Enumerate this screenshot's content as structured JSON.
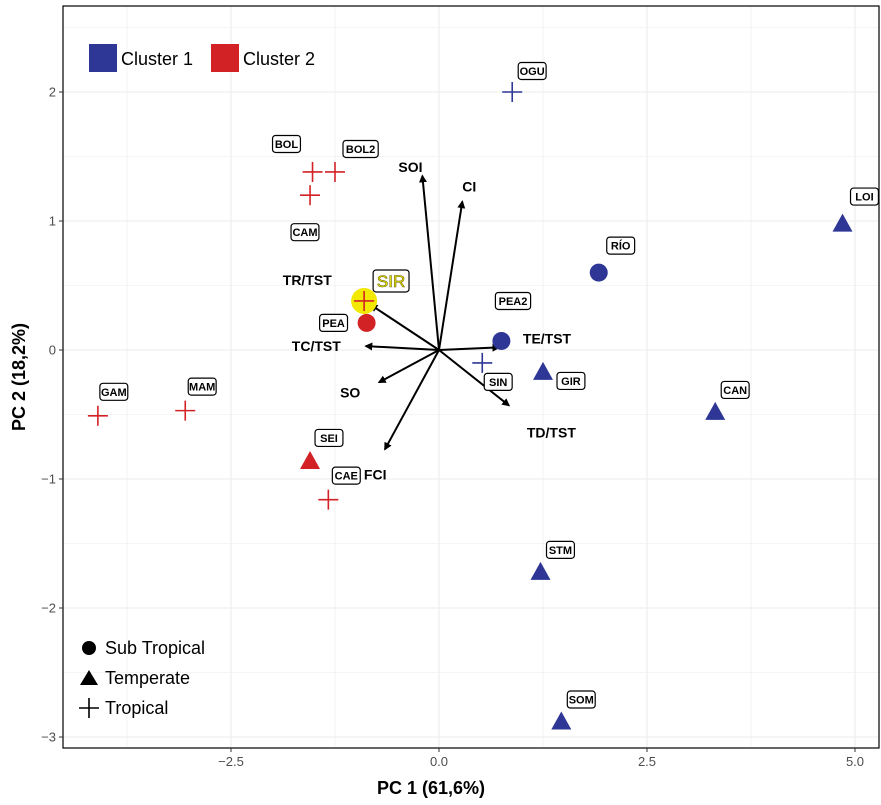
{
  "chart_data": {
    "type": "scatter",
    "xlabel": "PC 1 (61,6%)",
    "ylabel": "PC 2 (18,2%)",
    "xlim": [
      -5.3,
      5.3
    ],
    "ylim": [
      -3.15,
      2.55
    ],
    "x_ticks": [
      -2.5,
      0.0,
      2.5,
      5.0
    ],
    "x_tick_labels": [
      "−2.5",
      "0.0",
      "2.5",
      "5.0"
    ],
    "y_ticks": [
      -3,
      -2,
      -1,
      0,
      1,
      2
    ],
    "y_tick_labels": [
      "−3",
      "−2",
      "−1",
      "0",
      "1",
      "2"
    ],
    "grid": true,
    "colors": {
      "cluster1": "#2e3795",
      "cluster2": "#d32226",
      "highlight": "#f2e800"
    },
    "cluster_legend": [
      {
        "key": "cluster1",
        "label": "Cluster 1"
      },
      {
        "key": "cluster2",
        "label": "Cluster 2"
      }
    ],
    "shape_legend": [
      {
        "shape": "circle",
        "label": "Sub Tropical"
      },
      {
        "shape": "triangle",
        "label": "Temperate"
      },
      {
        "shape": "cross",
        "label": "Tropical"
      }
    ],
    "points": [
      {
        "label": "OGU",
        "x": 0.88,
        "y": 2.0,
        "cluster": "cluster1",
        "shape": "cross"
      },
      {
        "label": "LOI",
        "x": 4.85,
        "y": 0.98,
        "cluster": "cluster1",
        "shape": "triangle"
      },
      {
        "label": "RÍO",
        "x": 1.92,
        "y": 0.6,
        "cluster": "cluster1",
        "shape": "circle"
      },
      {
        "label": "PEA2",
        "x": 0.75,
        "y": 0.07,
        "cluster": "cluster1",
        "shape": "circle"
      },
      {
        "label": "SIN",
        "x": 0.52,
        "y": -0.1,
        "cluster": "cluster1",
        "shape": "cross"
      },
      {
        "label": "GIR",
        "x": 1.25,
        "y": -0.17,
        "cluster": "cluster1",
        "shape": "triangle"
      },
      {
        "label": "CAN",
        "x": 3.32,
        "y": -0.48,
        "cluster": "cluster1",
        "shape": "triangle"
      },
      {
        "label": "STM",
        "x": 1.22,
        "y": -1.72,
        "cluster": "cluster1",
        "shape": "triangle"
      },
      {
        "label": "SOM",
        "x": 1.47,
        "y": -2.88,
        "cluster": "cluster1",
        "shape": "triangle"
      },
      {
        "label": "BOL",
        "x": -1.52,
        "y": 1.38,
        "cluster": "cluster2",
        "shape": "cross"
      },
      {
        "label": "BOL2",
        "x": -1.25,
        "y": 1.38,
        "cluster": "cluster2",
        "shape": "cross"
      },
      {
        "label": "CAM",
        "x": -1.55,
        "y": 1.2,
        "cluster": "cluster2",
        "shape": "cross"
      },
      {
        "label": "SIR",
        "x": -0.9,
        "y": 0.38,
        "cluster": "cluster2",
        "shape": "cross",
        "highlight": true
      },
      {
        "label": "PEA",
        "x": -0.87,
        "y": 0.21,
        "cluster": "cluster2",
        "shape": "circle"
      },
      {
        "label": "GAM",
        "x": -4.1,
        "y": -0.51,
        "cluster": "cluster2",
        "shape": "cross"
      },
      {
        "label": "MAM",
        "x": -3.05,
        "y": -0.47,
        "cluster": "cluster2",
        "shape": "cross"
      },
      {
        "label": "SEI",
        "x": -1.55,
        "y": -0.86,
        "cluster": "cluster2",
        "shape": "triangle"
      },
      {
        "label": "CAE",
        "x": -1.33,
        "y": -1.16,
        "cluster": "cluster2",
        "shape": "cross"
      }
    ],
    "vectors": [
      {
        "label": "SOI",
        "x": -0.2,
        "y": 1.35
      },
      {
        "label": "CI",
        "x": 0.28,
        "y": 1.15
      },
      {
        "label": "TR/TST",
        "x": -0.82,
        "y": 0.35
      },
      {
        "label": "TC/TST",
        "x": -0.88,
        "y": 0.03
      },
      {
        "label": "TE/TST",
        "x": 0.72,
        "y": 0.02
      },
      {
        "label": "SO",
        "x": -0.72,
        "y": -0.25
      },
      {
        "label": "TD/TST",
        "x": 0.84,
        "y": -0.43
      },
      {
        "label": "FCI",
        "x": -0.65,
        "y": -0.77
      }
    ]
  }
}
